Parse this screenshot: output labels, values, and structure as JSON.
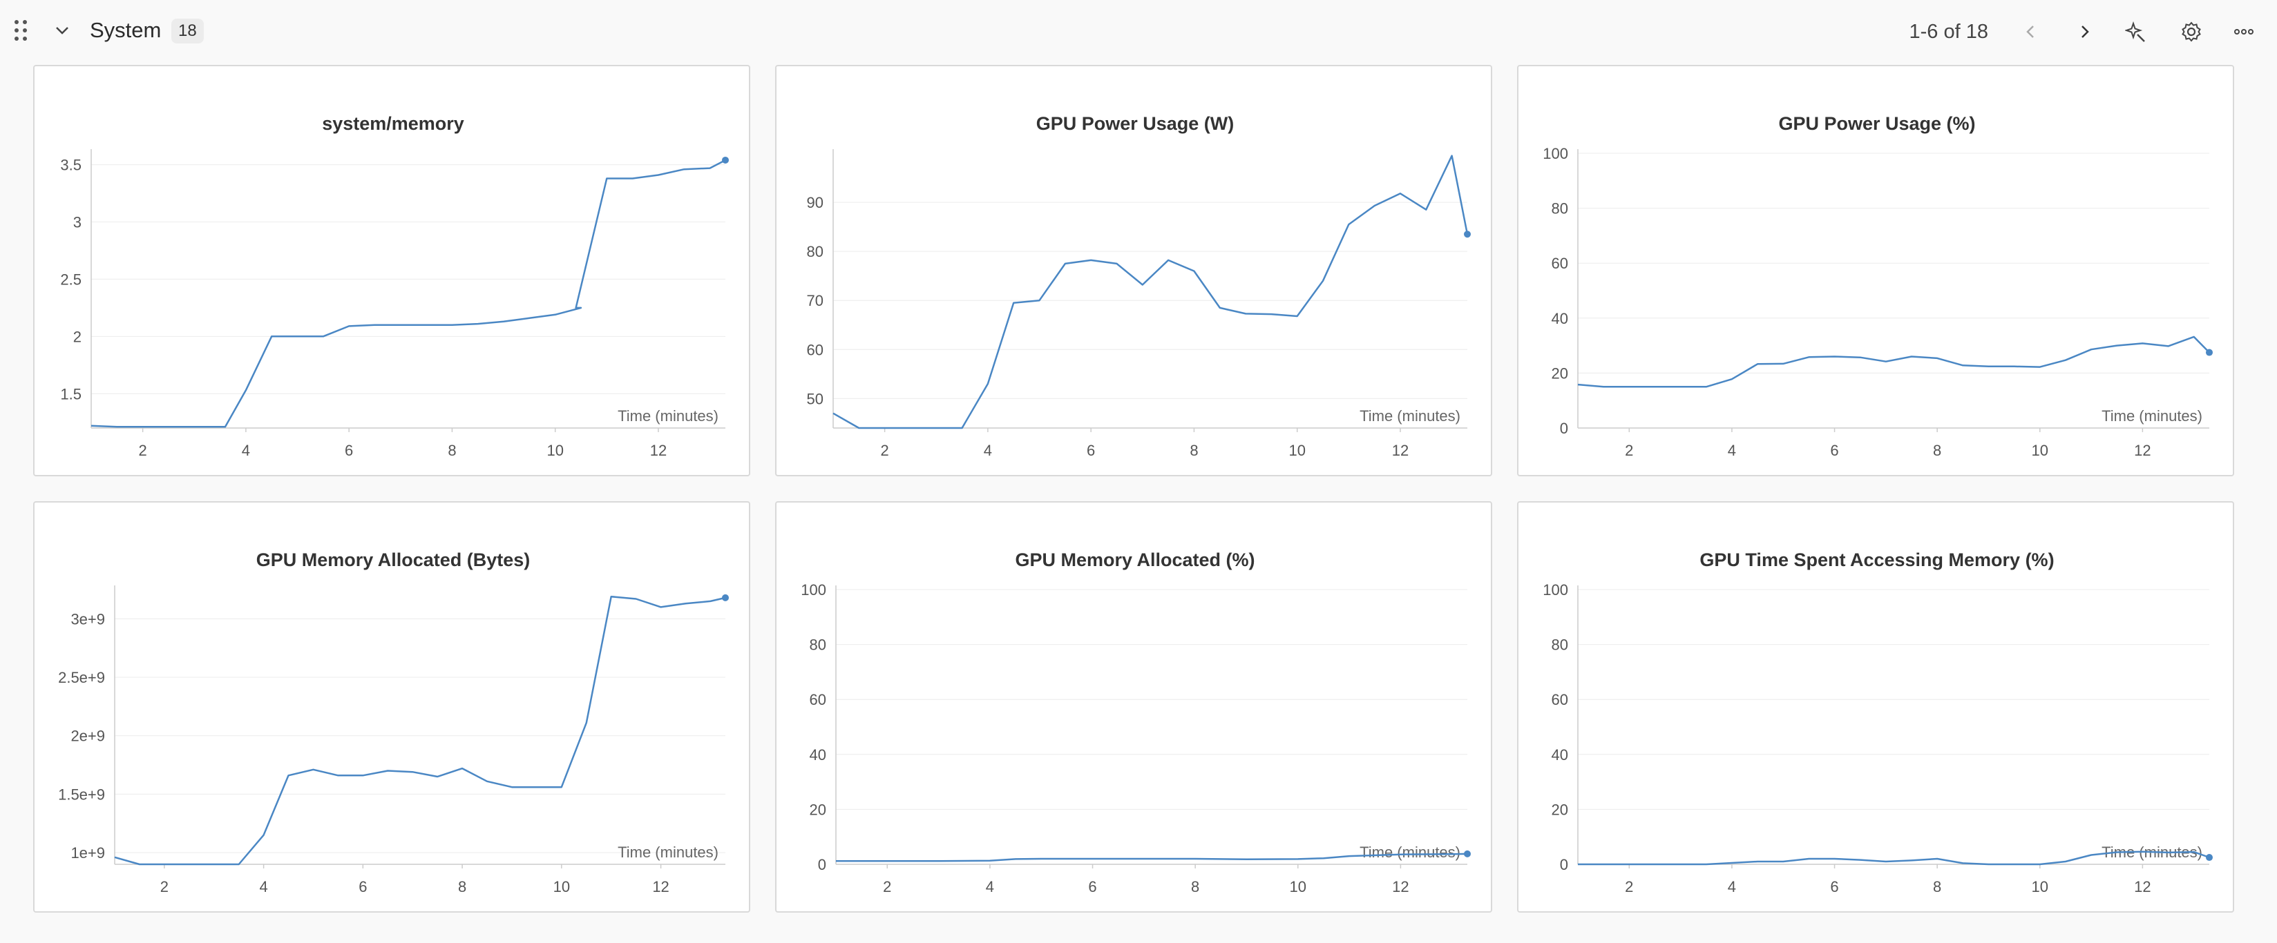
{
  "section": {
    "title": "System",
    "count": "18",
    "pagination": "1-6 of 18"
  },
  "icons": {
    "drag": "drag-handle-icon",
    "collapse": "chevron-down-icon",
    "prev": "chevron-left-icon",
    "next": "chevron-right-icon",
    "ai": "sparkle-icon",
    "settings": "gear-icon",
    "more": "more-horizontal-icon"
  },
  "colors": {
    "line": "#4a87c4",
    "grid": "#ececec",
    "axis": "#cccccc"
  },
  "chart_data": [
    {
      "type": "line",
      "title": "system/memory",
      "xlabel": "Time (minutes)",
      "ylabel": "",
      "xlim": [
        1,
        13.3
      ],
      "ylim": [
        1.2,
        3.6
      ],
      "xticks": [
        2,
        4,
        6,
        8,
        10,
        12
      ],
      "yticks": [
        1.5,
        2,
        2.5,
        3,
        3.5
      ],
      "ytick_labels": [
        "1.5",
        "2",
        "2.5",
        "3",
        "3.5"
      ],
      "grid": true,
      "series": [
        {
          "x": [
            1,
            1.5,
            2,
            2.5,
            3,
            3.6,
            4,
            4.5,
            5,
            5.5,
            6,
            6.5,
            7,
            7.5,
            8,
            8.5,
            9,
            9.5,
            10,
            10.5,
            10.4,
            11,
            11.5,
            12,
            12.5,
            13,
            13.3
          ],
          "y": [
            1.22,
            1.21,
            1.21,
            1.21,
            1.21,
            1.21,
            1.53,
            2.0,
            2.0,
            2.0,
            2.09,
            2.1,
            2.1,
            2.1,
            2.1,
            2.11,
            2.13,
            2.16,
            2.19,
            2.25,
            2.25,
            3.38,
            3.38,
            3.41,
            3.46,
            3.47,
            3.54
          ]
        }
      ]
    },
    {
      "type": "line",
      "title": "GPU Power Usage (W)",
      "xlabel": "Time (minutes)",
      "ylabel": "",
      "xlim": [
        1,
        13.3
      ],
      "ylim": [
        44,
        100
      ],
      "xticks": [
        2,
        4,
        6,
        8,
        10,
        12
      ],
      "yticks": [
        50,
        60,
        70,
        80,
        90
      ],
      "ytick_labels": [
        "50",
        "60",
        "70",
        "80",
        "90"
      ],
      "grid": true,
      "series": [
        {
          "x": [
            1,
            1.5,
            2,
            2.5,
            3,
            3.5,
            4,
            4.5,
            5,
            5.5,
            6,
            6.5,
            7,
            7.5,
            8,
            8.5,
            9,
            9.5,
            10,
            10.5,
            11,
            11.5,
            12,
            12.5,
            13,
            13.3
          ],
          "y": [
            47,
            44,
            44,
            44,
            44,
            44,
            53,
            69.5,
            70,
            77.5,
            78.2,
            77.5,
            73.2,
            78.2,
            76,
            68.5,
            67.3,
            67.2,
            66.8,
            74,
            85.5,
            89.3,
            91.8,
            88.5,
            99.5,
            83.5
          ]
        }
      ]
    },
    {
      "type": "line",
      "title": "GPU Power Usage (%)",
      "xlabel": "Time (minutes)",
      "ylabel": "",
      "xlim": [
        1,
        13.3
      ],
      "ylim": [
        0,
        100
      ],
      "xticks": [
        2,
        4,
        6,
        8,
        10,
        12
      ],
      "yticks": [
        0,
        20,
        40,
        60,
        80,
        100
      ],
      "ytick_labels": [
        "0",
        "20",
        "40",
        "60",
        "80",
        "100"
      ],
      "grid": true,
      "series": [
        {
          "x": [
            1,
            1.5,
            2,
            2.5,
            3,
            3.5,
            4,
            4.5,
            5,
            5.5,
            6,
            6.5,
            7,
            7.5,
            8,
            8.5,
            9,
            9.5,
            10,
            10.5,
            11,
            11.5,
            12,
            12.5,
            13,
            13.3
          ],
          "y": [
            15.8,
            15,
            15,
            15,
            15,
            15,
            17.8,
            23.3,
            23.4,
            25.8,
            26,
            25.7,
            24.2,
            26,
            25.4,
            22.8,
            22.4,
            22.4,
            22.2,
            24.7,
            28.6,
            30,
            30.8,
            29.8,
            33.2,
            27.5
          ]
        }
      ]
    },
    {
      "type": "line",
      "title": "GPU Memory Allocated (Bytes)",
      "xlabel": "Time (minutes)",
      "ylabel": "",
      "xlim": [
        1,
        13.3
      ],
      "ylim": [
        900000000,
        3250000000
      ],
      "xticks": [
        2,
        4,
        6,
        8,
        10,
        12
      ],
      "yticks": [
        1000000000,
        1500000000,
        2000000000,
        2500000000,
        3000000000
      ],
      "ytick_labels": [
        "1e+9",
        "1.5e+9",
        "2e+9",
        "2.5e+9",
        "3e+9"
      ],
      "grid": true,
      "series": [
        {
          "x": [
            1,
            1.5,
            2,
            2.5,
            3,
            3.5,
            4,
            4.5,
            5,
            5.5,
            6,
            6.5,
            7,
            7.5,
            8,
            8.5,
            9,
            9.5,
            10,
            10.5,
            11,
            11.5,
            12,
            12.5,
            13,
            13.3
          ],
          "y": [
            960000000,
            900000000,
            900000000,
            900000000,
            900000000,
            900000000,
            1150000000,
            1660000000,
            1710000000,
            1660000000,
            1660000000,
            1700000000,
            1690000000,
            1650000000,
            1720000000,
            1610000000,
            1560000000,
            1560000000,
            1560000000,
            2110000000,
            3190000000,
            3170000000,
            3100000000,
            3130000000,
            3150000000,
            3180000000
          ]
        }
      ]
    },
    {
      "type": "line",
      "title": "GPU Memory Allocated (%)",
      "xlabel": "Time (minutes)",
      "ylabel": "",
      "xlim": [
        1,
        13.3
      ],
      "ylim": [
        0,
        100
      ],
      "xticks": [
        2,
        4,
        6,
        8,
        10,
        12
      ],
      "yticks": [
        0,
        20,
        40,
        60,
        80,
        100
      ],
      "ytick_labels": [
        "0",
        "20",
        "40",
        "60",
        "80",
        "100"
      ],
      "grid": true,
      "series": [
        {
          "x": [
            1,
            2,
            3,
            4,
            4.5,
            5,
            6,
            7,
            8,
            9,
            10,
            10.5,
            11,
            12,
            13,
            13.3
          ],
          "y": [
            1.2,
            1.2,
            1.2,
            1.3,
            1.9,
            2.0,
            2.0,
            2.0,
            2.0,
            1.8,
            1.9,
            2.2,
            3.0,
            3.6,
            3.7,
            3.8
          ]
        }
      ]
    },
    {
      "type": "line",
      "title": "GPU Time Spent Accessing Memory (%)",
      "xlabel": "Time (minutes)",
      "ylabel": "",
      "xlim": [
        1,
        13.3
      ],
      "ylim": [
        0,
        100
      ],
      "xticks": [
        2,
        4,
        6,
        8,
        10,
        12
      ],
      "yticks": [
        0,
        20,
        40,
        60,
        80,
        100
      ],
      "ytick_labels": [
        "0",
        "20",
        "40",
        "60",
        "80",
        "100"
      ],
      "grid": true,
      "series": [
        {
          "x": [
            1,
            2,
            3,
            3.5,
            4,
            4.5,
            5,
            5.5,
            6,
            6.5,
            7,
            7.5,
            8,
            8.5,
            9,
            9.5,
            10,
            10.5,
            11,
            11.5,
            12,
            12.5,
            13,
            13.3
          ],
          "y": [
            0,
            0,
            0,
            0,
            0.5,
            1,
            1,
            2,
            2,
            1.6,
            1,
            1.4,
            2,
            0.4,
            0,
            0,
            0,
            1,
            3.4,
            4.4,
            4.6,
            4.3,
            4.5,
            2.5
          ]
        }
      ]
    }
  ]
}
